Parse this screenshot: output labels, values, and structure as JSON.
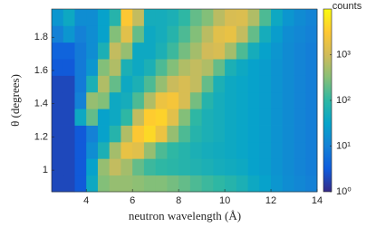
{
  "chart_data": {
    "type": "heatmap",
    "xlabel": "neutron wavelength (Å)",
    "ylabel": "θ (degrees)",
    "colorbar_label": "counts",
    "xlim": [
      2.5,
      14
    ],
    "xticks": [
      4,
      6,
      8,
      10,
      12,
      14
    ],
    "ylim": [
      0.87,
      1.97
    ],
    "yticks": [
      1,
      1.2,
      1.4,
      1.6,
      1.8
    ],
    "clim": [
      1,
      10000
    ],
    "color_scale": "log",
    "cticks": [
      {
        "value": 1,
        "label": "10⁰"
      },
      {
        "value": 10,
        "label": "10¹"
      },
      {
        "value": 100,
        "label": "10²"
      },
      {
        "value": 1000,
        "label": "10³"
      }
    ],
    "colormap": [
      "#352a87",
      "#0f5cdd",
      "#1481d6",
      "#06a4ca",
      "#2eb7a4",
      "#87bf77",
      "#d1bb59",
      "#fec832",
      "#f9fb0e"
    ],
    "x_edges": [
      2.5,
      3,
      3.5,
      4,
      4.5,
      5,
      5.5,
      6,
      6.5,
      7,
      7.5,
      8,
      8.5,
      9,
      9.5,
      10,
      10.5,
      11,
      11.5,
      12,
      12.5,
      13,
      13.5,
      14
    ],
    "y_edges": [
      0.87,
      0.97,
      1.07,
      1.17,
      1.27,
      1.37,
      1.47,
      1.57,
      1.67,
      1.77,
      1.87,
      1.97
    ],
    "z": [
      [
        2,
        2,
        3,
        40,
        300,
        400,
        400,
        350,
        300,
        300,
        250,
        200,
        150,
        120,
        100,
        80,
        60,
        40,
        30,
        20,
        15,
        12,
        10
      ],
      [
        2,
        2,
        3,
        30,
        400,
        800,
        500,
        200,
        120,
        100,
        90,
        80,
        70,
        60,
        50,
        45,
        40,
        30,
        25,
        18,
        14,
        11,
        9
      ],
      [
        2,
        2,
        3,
        15,
        60,
        500,
        1800,
        1500,
        400,
        150,
        100,
        80,
        60,
        50,
        45,
        40,
        35,
        30,
        25,
        18,
        14,
        11,
        9
      ],
      [
        2,
        2,
        3,
        10,
        30,
        80,
        600,
        3000,
        4500,
        2000,
        400,
        150,
        80,
        60,
        50,
        40,
        35,
        30,
        25,
        18,
        14,
        11,
        9
      ],
      [
        2,
        2,
        40,
        200,
        30,
        40,
        100,
        800,
        3500,
        4000,
        1500,
        300,
        100,
        60,
        50,
        40,
        35,
        30,
        25,
        18,
        14,
        11,
        9
      ],
      [
        2,
        2,
        10,
        400,
        300,
        40,
        50,
        150,
        600,
        2000,
        2500,
        1200,
        250,
        80,
        50,
        40,
        35,
        30,
        25,
        18,
        14,
        11,
        9
      ],
      [
        2,
        2,
        8,
        60,
        600,
        200,
        40,
        60,
        150,
        400,
        900,
        1200,
        800,
        200,
        60,
        40,
        35,
        30,
        25,
        18,
        14,
        11,
        9
      ],
      [
        3,
        3,
        8,
        20,
        300,
        600,
        60,
        40,
        60,
        150,
        300,
        600,
        800,
        600,
        200,
        60,
        40,
        30,
        25,
        18,
        14,
        11,
        9
      ],
      [
        4,
        4,
        8,
        15,
        60,
        800,
        400,
        40,
        40,
        60,
        120,
        250,
        500,
        1000,
        1200,
        500,
        150,
        50,
        30,
        20,
        14,
        11,
        9
      ],
      [
        10,
        20,
        10,
        15,
        30,
        300,
        1500,
        200,
        40,
        50,
        80,
        150,
        300,
        700,
        1500,
        1800,
        800,
        200,
        50,
        25,
        15,
        12,
        10
      ],
      [
        20,
        40,
        15,
        15,
        30,
        80,
        3000,
        800,
        50,
        50,
        60,
        100,
        200,
        300,
        700,
        1200,
        1300,
        600,
        150,
        40,
        20,
        14,
        11
      ]
    ]
  }
}
